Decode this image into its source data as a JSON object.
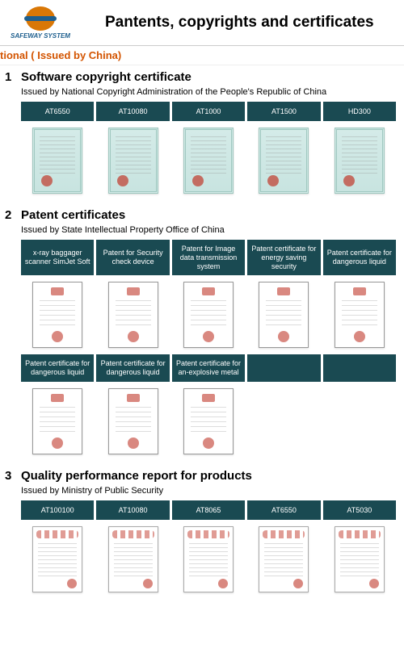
{
  "brand": "SAFEWAY SYSTEM",
  "page_title": "Pantents, copyrights and certificates",
  "nav_text": "tional ( Issued by China)",
  "colors": {
    "tab_bg": "#1a4a52",
    "nav_text": "#d35400",
    "logo_globe": "#d97706",
    "logo_band": "#1e5f8e"
  },
  "sections": [
    {
      "num": "1",
      "title": "Software copyright certificate",
      "sub": "Issued by National Copyright Administration of the People's Republic of China",
      "rows": [
        {
          "tabs": [
            "AT6550",
            "AT10080",
            "AT1000",
            "AT1500",
            "HD300"
          ],
          "cert_style": "teal",
          "count": 5
        }
      ]
    },
    {
      "num": "2",
      "title": "Patent certificates",
      "sub": "Issued by State Intellectual Property Office of China",
      "rows": [
        {
          "tabs": [
            "x-ray baggager scanner SimJet Soft",
            "Patent for Security check device",
            "Patent for Image data transmission system",
            "Patent certificate for energy saving security",
            "Patent certificate for dangerous liquid"
          ],
          "tall": true,
          "cert_style": "white",
          "count": 5
        },
        {
          "tabs": [
            "Patent certificate for dangerous liquid",
            "Patent certificate for dangerous liquid",
            "Patent certificate for an-explosive metal",
            "",
            ""
          ],
          "tall": true,
          "cert_style": "white",
          "count": 3
        }
      ]
    },
    {
      "num": "3",
      "title": "Quality performance report for products",
      "sub": "Issued by Ministry of Public Security",
      "rows": [
        {
          "tabs": [
            "AT100100",
            "AT10080",
            "AT8065",
            "AT6550",
            "AT5030"
          ],
          "cert_style": "report",
          "count": 5
        }
      ]
    }
  ]
}
